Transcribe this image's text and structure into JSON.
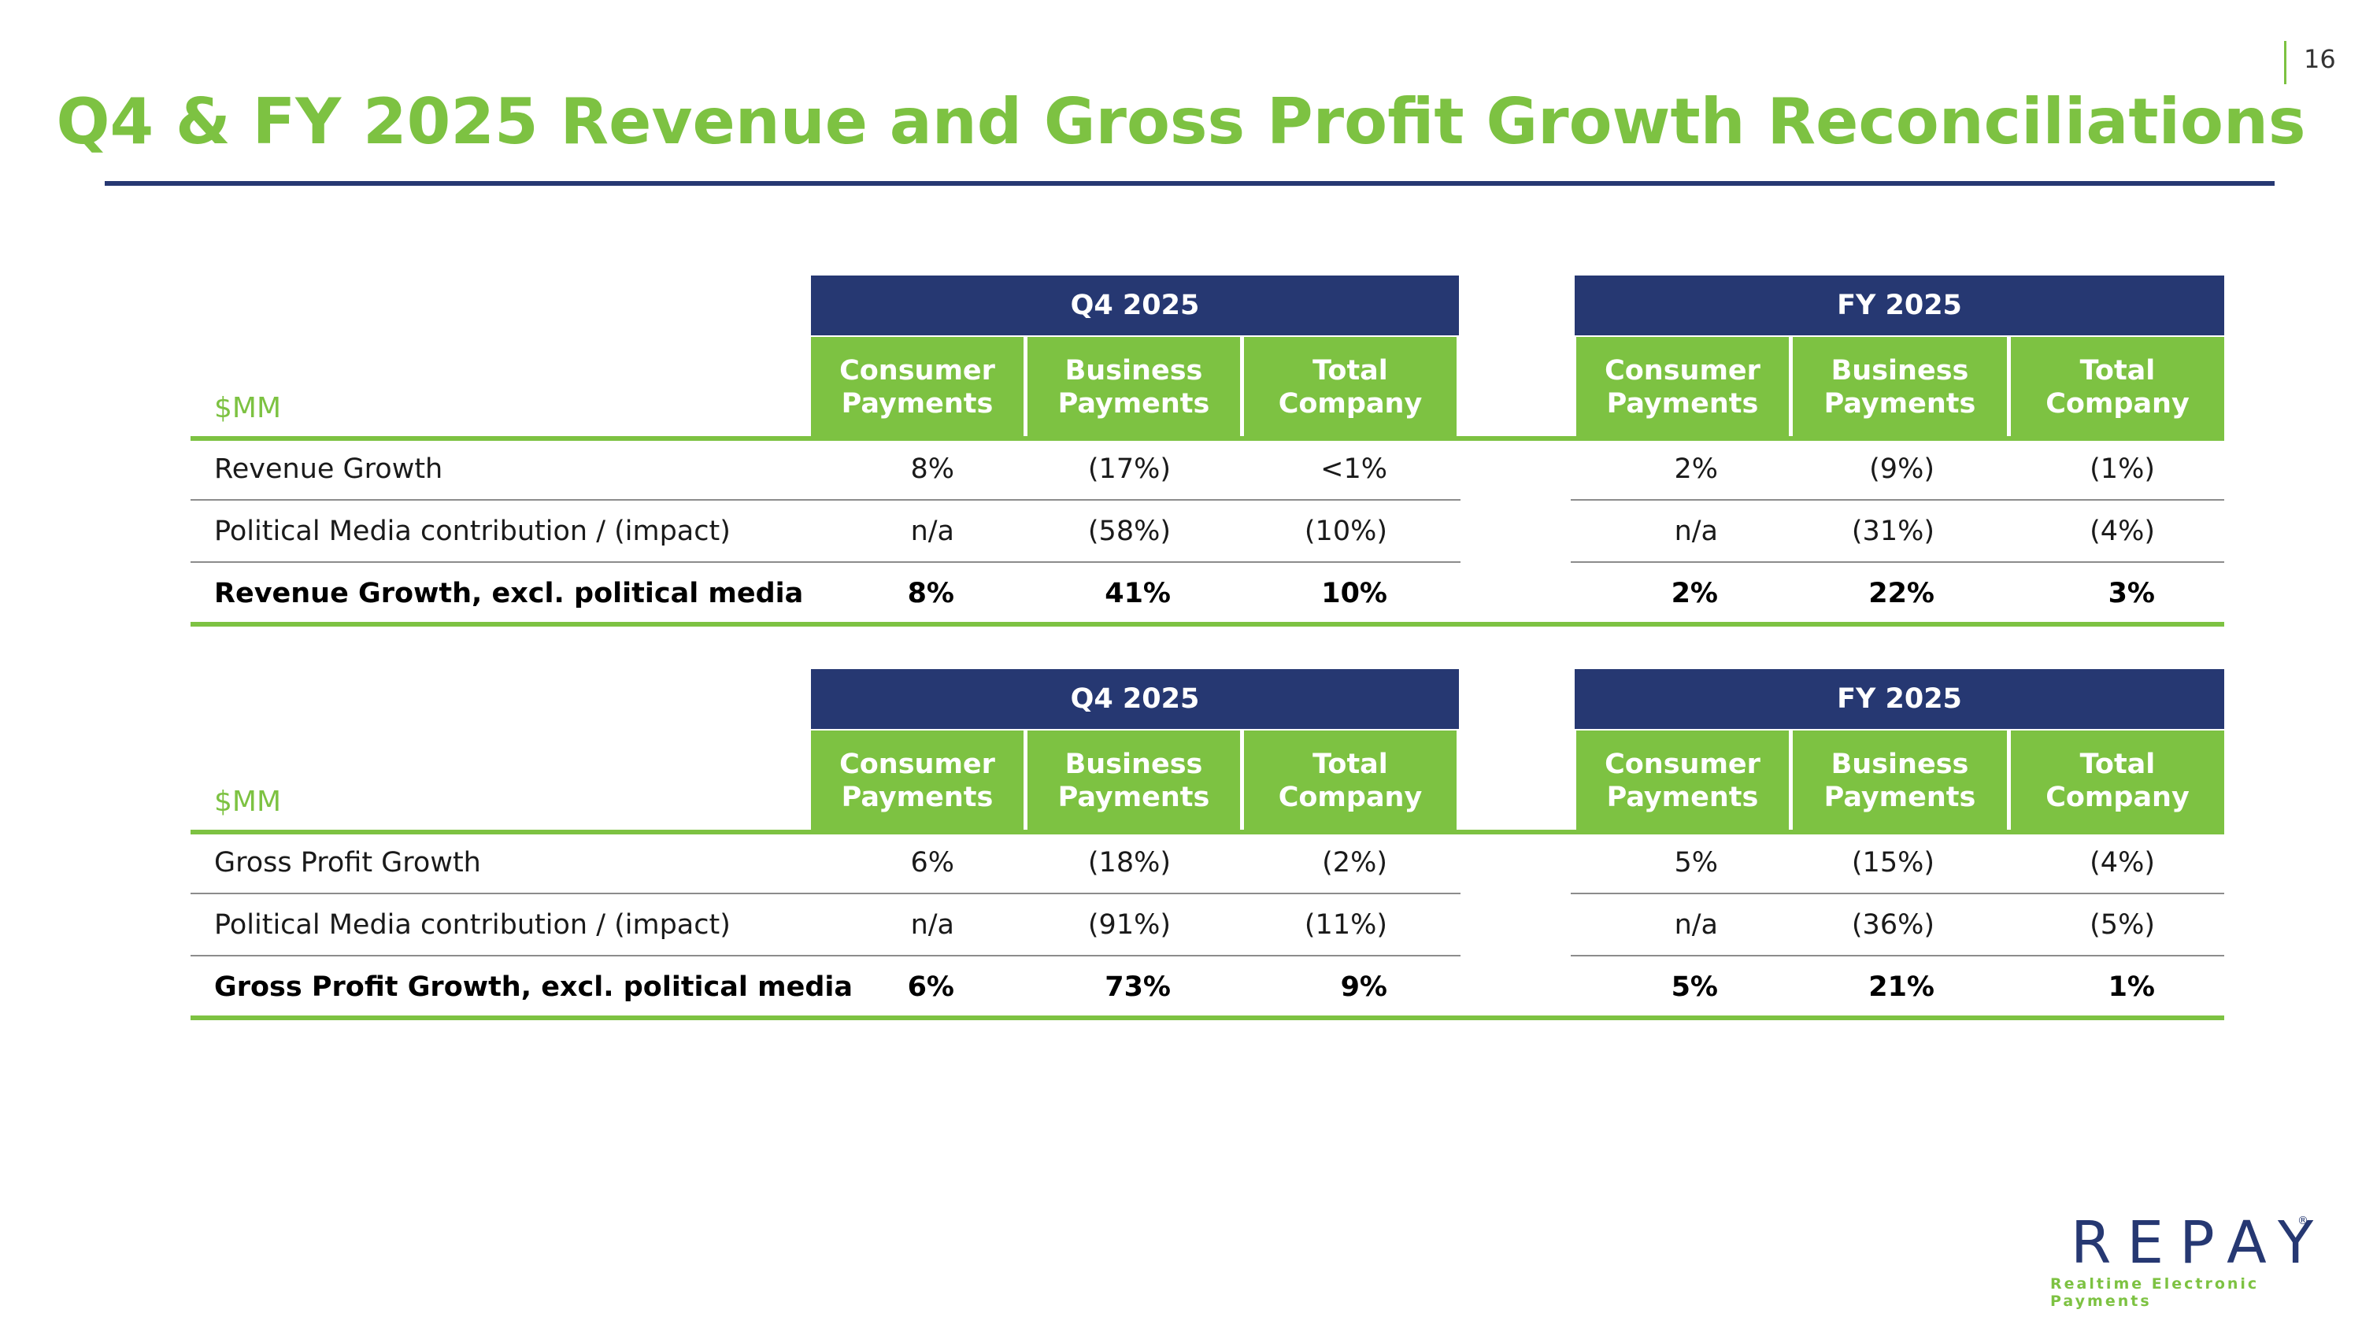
{
  "page_number": "16",
  "title": "Q4 & FY 2025 Revenue and Gross Profit Growth Reconciliations",
  "tables": [
    {
      "unit_label": "$MM",
      "groups": [
        {
          "label": "Q4 2025",
          "columns": [
            "Consumer Payments",
            "Business Payments",
            "Total Company"
          ]
        },
        {
          "label": "FY 2025",
          "columns": [
            "Consumer Payments",
            "Business Payments",
            "Total Company"
          ]
        }
      ],
      "rows": [
        {
          "label": "Revenue Growth",
          "q4": [
            "8%",
            "(17%)",
            "<1%"
          ],
          "fy": [
            "2%",
            "(9%)",
            "(1%)"
          ]
        },
        {
          "label": "Political Media contribution / (impact)",
          "q4": [
            "n/a",
            "(58%)",
            "(10%)"
          ],
          "fy": [
            "n/a",
            "(31%)",
            "(4%)"
          ]
        },
        {
          "label": "Revenue Growth, excl. political media",
          "q4": [
            "8%",
            "41%",
            "10%"
          ],
          "fy": [
            "2%",
            "22%",
            "3%"
          ]
        }
      ]
    },
    {
      "unit_label": "$MM",
      "groups": [
        {
          "label": "Q4 2025",
          "columns": [
            "Consumer Payments",
            "Business Payments",
            "Total Company"
          ]
        },
        {
          "label": "FY 2025",
          "columns": [
            "Consumer Payments",
            "Business Payments",
            "Total Company"
          ]
        }
      ],
      "rows": [
        {
          "label": "Gross Profit Growth",
          "q4": [
            "6%",
            "(18%)",
            "(2%)"
          ],
          "fy": [
            "5%",
            "(15%)",
            "(4%)"
          ]
        },
        {
          "label": "Political Media contribution / (impact)",
          "q4": [
            "n/a",
            "(91%)",
            "(11%)"
          ],
          "fy": [
            "n/a",
            "(36%)",
            "(5%)"
          ]
        },
        {
          "label": "Gross Profit Growth, excl. political media",
          "q4": [
            "6%",
            "73%",
            "9%"
          ],
          "fy": [
            "5%",
            "21%",
            "1%"
          ]
        }
      ]
    }
  ],
  "logo": {
    "wordmark": "REPAY",
    "registered": "®",
    "tagline": "Realtime Electronic Payments"
  },
  "colors": {
    "brand_green": "#7dc242",
    "brand_navy": "#263872"
  }
}
